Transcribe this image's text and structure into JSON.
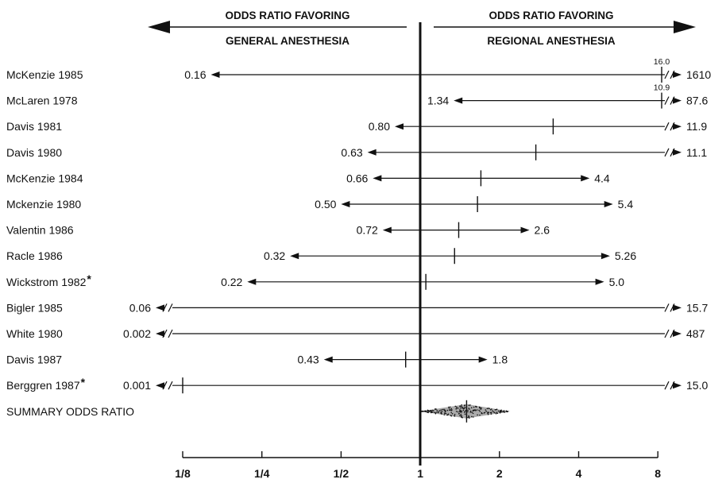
{
  "colors": {
    "ink": "#111111",
    "background": "#ffffff"
  },
  "chart_data": {
    "type": "forest",
    "x_scale": "log2",
    "xlim": [
      0.125,
      8
    ],
    "x_ticks": [
      0.125,
      0.25,
      0.5,
      1,
      2,
      4,
      8
    ],
    "x_tick_labels": [
      "1/8",
      "1/4",
      "1/2",
      "1",
      "2",
      "4",
      "8"
    ],
    "header": {
      "left_line1": "ODDS RATIO FAVORING",
      "left_line2": "GENERAL ANESTHESIA",
      "right_line1": "ODDS RATIO FAVORING",
      "right_line2": "REGIONAL ANESTHESIA"
    },
    "studies": [
      {
        "name": "McKenzie 1985",
        "lower": 0.16,
        "lower_label": "0.16",
        "estimate": 16.0,
        "estimate_label": "16.0",
        "upper": 1610,
        "upper_label": "1610"
      },
      {
        "name": "McLaren 1978",
        "lower": 1.34,
        "lower_label": "1.34",
        "estimate": 10.9,
        "estimate_label": "10.9",
        "upper": 87.6,
        "upper_label": "87.6"
      },
      {
        "name": "Davis 1981",
        "lower": 0.8,
        "lower_label": "0.80",
        "estimate": 3.2,
        "upper": 11.9,
        "upper_label": "11.9"
      },
      {
        "name": "Davis 1980",
        "lower": 0.63,
        "lower_label": "0.63",
        "estimate": 2.75,
        "upper": 11.1,
        "upper_label": "11.1"
      },
      {
        "name": "McKenzie 1984",
        "lower": 0.66,
        "lower_label": "0.66",
        "estimate": 1.7,
        "upper": 4.4,
        "upper_label": "4.4"
      },
      {
        "name": "Mckenzie 1980",
        "lower": 0.5,
        "lower_label": "0.50",
        "estimate": 1.65,
        "upper": 5.4,
        "upper_label": "5.4"
      },
      {
        "name": "Valentin 1986",
        "lower": 0.72,
        "lower_label": "0.72",
        "estimate": 1.4,
        "upper": 2.6,
        "upper_label": "2.6"
      },
      {
        "name": "Racle 1986",
        "lower": 0.32,
        "lower_label": "0.32",
        "estimate": 1.35,
        "upper": 5.26,
        "upper_label": "5.26"
      },
      {
        "name": "Wickstrom 1982",
        "asterisk": "*",
        "lower": 0.22,
        "lower_label": "0.22",
        "estimate": 1.05,
        "upper": 5.0,
        "upper_label": "5.0"
      },
      {
        "name": "Bigler 1985",
        "lower": 0.06,
        "lower_label": "0.06",
        "estimate": 1.0,
        "upper": 15.7,
        "upper_label": "15.7"
      },
      {
        "name": "White 1980",
        "lower": 0.002,
        "lower_label": "0.002",
        "estimate": 1.0,
        "upper": 487,
        "upper_label": "487"
      },
      {
        "name": "Davis 1987",
        "lower": 0.43,
        "lower_label": "0.43",
        "estimate": 0.88,
        "upper": 1.8,
        "upper_label": "1.8"
      },
      {
        "name": "Berggren 1987",
        "asterisk": "*",
        "lower": 0.001,
        "lower_label": "0.001",
        "estimate": 0.125,
        "upper": 15.0,
        "upper_label": "15.0"
      }
    ],
    "summary": {
      "name": "SUMMARY ODDS RATIO",
      "lower": 1.0,
      "estimate": 1.5,
      "upper": 2.2
    }
  }
}
